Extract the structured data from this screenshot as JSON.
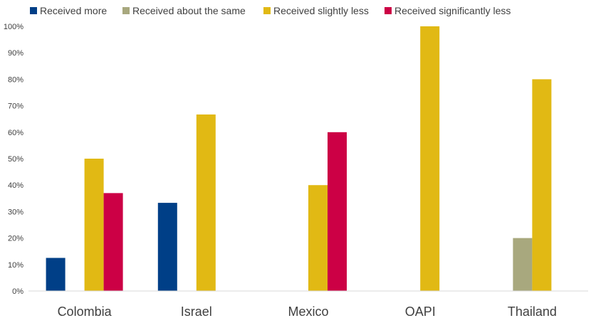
{
  "chart_data": {
    "type": "bar",
    "categories": [
      "Colombia",
      "Israel",
      "Mexico",
      "OAPI",
      "Thailand"
    ],
    "series": [
      {
        "name": "Received more",
        "color": "#003f87",
        "values": [
          12.5,
          33.3,
          0,
          0,
          0
        ]
      },
      {
        "name": "Received about the same",
        "color": "#a8a87e",
        "values": [
          0,
          0,
          0,
          0,
          20
        ]
      },
      {
        "name": "Received slightly less",
        "color": "#e1b914",
        "values": [
          50,
          66.7,
          40,
          100,
          80
        ]
      },
      {
        "name": "Received significantly less",
        "color": "#cc0045",
        "values": [
          37,
          0,
          60,
          0,
          0
        ]
      }
    ],
    "yticks": [
      "0%",
      "10%",
      "20%",
      "30%",
      "40%",
      "50%",
      "60%",
      "70%",
      "80%",
      "90%",
      "100%"
    ],
    "ylim": [
      0,
      100
    ],
    "grid": false,
    "legend_position": "top"
  }
}
